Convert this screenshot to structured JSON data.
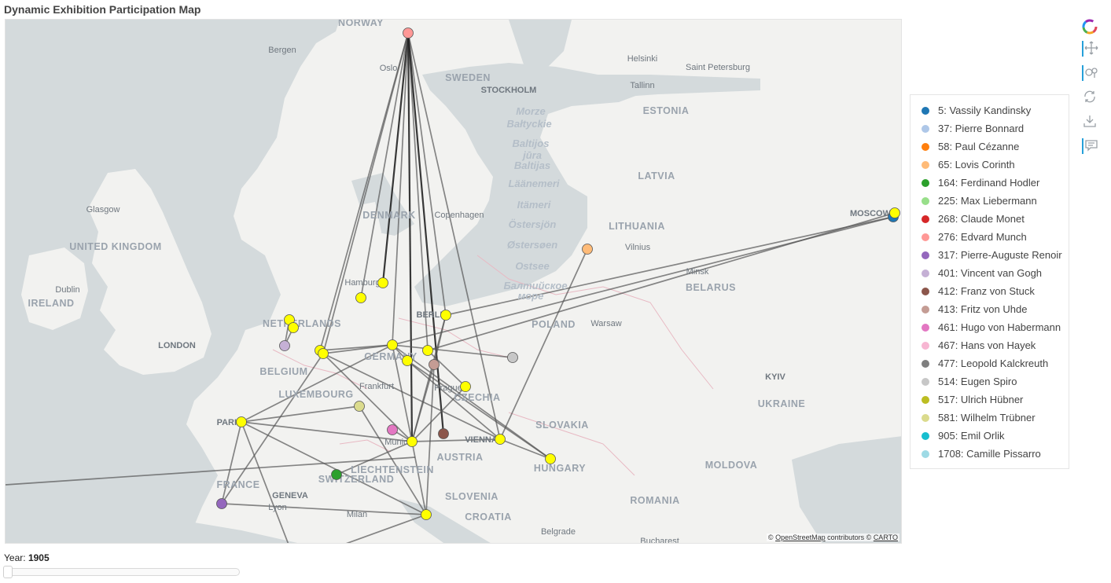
{
  "title": "Dynamic Exhibition Participation Map",
  "slider": {
    "label": "Year:",
    "value": "1905",
    "position_fraction": 0.0
  },
  "attribution": {
    "prefix": "©",
    "osm": "OpenStreetMap",
    "mid": "contributors ©",
    "carto": "CARTO"
  },
  "map_labels": {
    "countries": [
      "NORWAY",
      "SWEDEN",
      "ESTONIA",
      "LATVIA",
      "LITHUANIA",
      "DENMARK",
      "UNITED KINGDOM",
      "IRELAND",
      "NETHERLANDS",
      "BELGIUM",
      "LUXEMBOURG",
      "GERMANY",
      "POLAND",
      "BELARUS",
      "CZECHIA",
      "SLOVAKIA",
      "UKRAINE",
      "FRANCE",
      "SWITZERLAND",
      "LIECHTENSTEIN",
      "AUSTRIA",
      "HUNGARY",
      "SLOVENIA",
      "CROATIA",
      "MOLDOVA",
      "ROMANIA"
    ],
    "seas": [
      "Morze",
      "Bałtyckie",
      "Baltijos",
      "jūra",
      "Baltijas",
      "Läänemeri",
      "Itämeri",
      "Östersjön",
      "Østersøen",
      "Ostsee",
      "Балтийское",
      "море"
    ],
    "cities": [
      "Bergen",
      "Oslo",
      "STOCKHOLM",
      "Helsinki",
      "Saint Petersburg",
      "Tallinn",
      "Copenhagen",
      "Glasgow",
      "Dublin",
      "Hamburg",
      "BERLIN",
      "Vilnius",
      "Minsk",
      "MOSCOW",
      "LONDON",
      "Warsaw",
      "Frankfurt",
      "Prague",
      "KYIV",
      "PARIS",
      "Munich",
      "VIENNA",
      "GENEVA",
      "Lyon",
      "Milan",
      "Belgrade",
      "Bucharest"
    ]
  },
  "legend": [
    {
      "label": "5: Vassily Kandinsky",
      "color": "#1f77b4"
    },
    {
      "label": "37: Pierre Bonnard",
      "color": "#aec7e8"
    },
    {
      "label": "58: Paul Cézanne",
      "color": "#ff7f0e"
    },
    {
      "label": "65: Lovis Corinth",
      "color": "#ffbb78"
    },
    {
      "label": "164: Ferdinand Hodler",
      "color": "#2ca02c"
    },
    {
      "label": "225: Max Liebermann",
      "color": "#98df8a"
    },
    {
      "label": "268: Claude Monet",
      "color": "#d62728"
    },
    {
      "label": "276: Edvard Munch",
      "color": "#ff9896"
    },
    {
      "label": "317: Pierre-Auguste Renoir",
      "color": "#9467bd"
    },
    {
      "label": "401: Vincent van Gogh",
      "color": "#c5b0d5"
    },
    {
      "label": "412: Franz von Stuck",
      "color": "#8c564b"
    },
    {
      "label": "413: Fritz von Uhde",
      "color": "#c49c94"
    },
    {
      "label": "461: Hugo von Habermann",
      "color": "#e377c2"
    },
    {
      "label": "467: Hans von Hayek",
      "color": "#f7b6d2"
    },
    {
      "label": "477: Leopold Kalckreuth",
      "color": "#7f7f7f"
    },
    {
      "label": "514: Eugen Spiro",
      "color": "#c7c7c7"
    },
    {
      "label": "517: Ulrich Hübner",
      "color": "#bcbd22"
    },
    {
      "label": "581: Wilhelm Trübner",
      "color": "#dbdb8d"
    },
    {
      "label": "905: Emil Orlik",
      "color": "#17becf"
    },
    {
      "label": "1708: Camille Pissarro",
      "color": "#9edae5"
    }
  ],
  "colors": {
    "highlight": "#ffff00",
    "edge": "#555555",
    "land": "#f2f2f0",
    "water": "#d4dadc"
  },
  "toolbar_icons": [
    "plotly-logo-icon",
    "pan-icon",
    "wheel-zoom-icon",
    "reset-icon",
    "save-icon",
    "hover-icon"
  ]
}
